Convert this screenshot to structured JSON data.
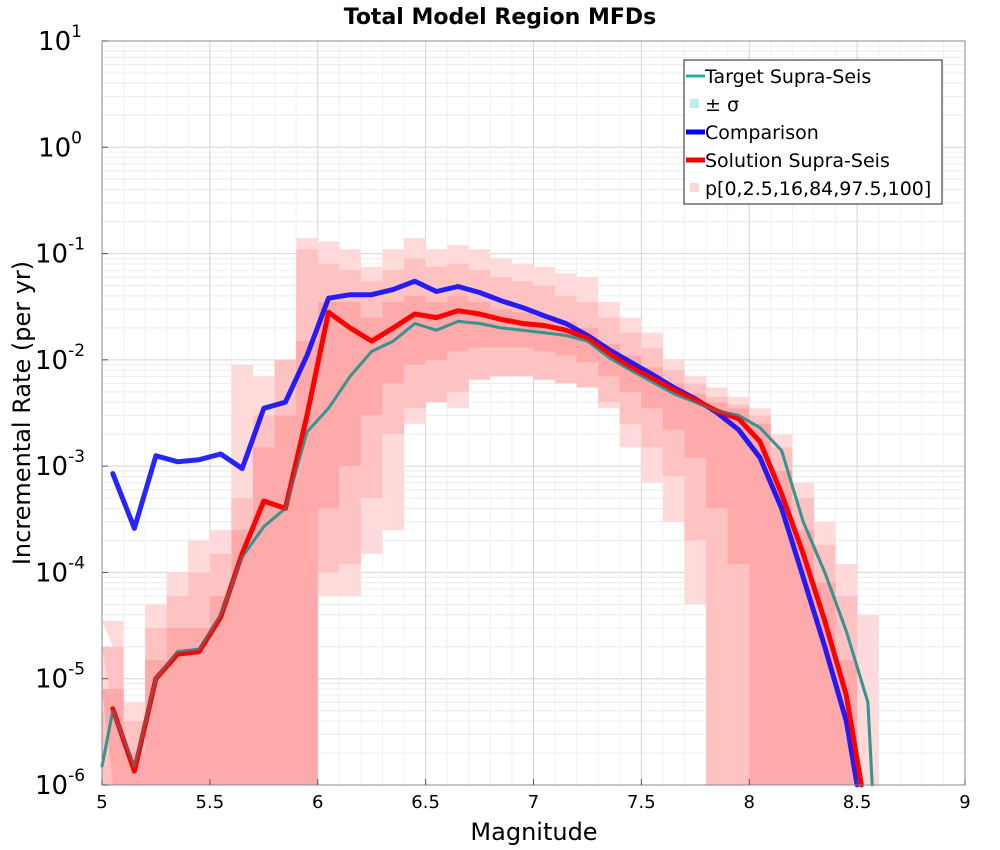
{
  "chart_data": {
    "type": "line",
    "title": "Total Model Region MFDs",
    "xlabel": "Magnitude",
    "ylabel": "Incremental Rate (per yr)",
    "xlim": [
      5,
      9
    ],
    "ylim": [
      1e-06,
      10
    ],
    "yscale": "log",
    "grid": true,
    "legend_position": "top-right",
    "x_ticks": [
      "5",
      "5.5",
      "6",
      "6.5",
      "7",
      "7.5",
      "8",
      "8.5",
      "9"
    ],
    "y_ticks": [
      {
        "value": 1e-06,
        "base": "10",
        "exp": "-6"
      },
      {
        "value": 1e-05,
        "base": "10",
        "exp": "-5"
      },
      {
        "value": 0.0001,
        "base": "10",
        "exp": "-4"
      },
      {
        "value": 0.001,
        "base": "10",
        "exp": "-3"
      },
      {
        "value": 0.01,
        "base": "10",
        "exp": "-2"
      },
      {
        "value": 0.1,
        "base": "10",
        "exp": "-1"
      },
      {
        "value": 1,
        "base": "10",
        "exp": "0"
      },
      {
        "value": 10,
        "base": "10",
        "exp": "1"
      }
    ],
    "legend": [
      {
        "label": "Target Supra-Seis",
        "kind": "line-thin",
        "color": "#20b2aa"
      },
      {
        "label": "± σ",
        "kind": "square",
        "color": "#c0ecec"
      },
      {
        "label": "Comparison",
        "kind": "line-thick",
        "color": "#0000ff"
      },
      {
        "label": "Solution Supra-Seis",
        "kind": "line-thick",
        "color": "#ff0000"
      },
      {
        "label": "p[0,2.5,16,84,97.5,100]",
        "kind": "square",
        "color": "#ffd6d6"
      }
    ],
    "series": [
      {
        "name": "Target Supra-Seis",
        "color": "#20b2aa",
        "x": [
          5.0,
          5.05,
          5.15,
          5.25,
          5.35,
          5.45,
          5.55,
          5.65,
          5.75,
          5.85,
          5.95,
          6.05,
          6.15,
          6.25,
          6.35,
          6.45,
          6.55,
          6.65,
          6.75,
          6.85,
          6.95,
          7.05,
          7.15,
          7.25,
          7.35,
          7.45,
          7.55,
          7.65,
          7.75,
          7.85,
          7.95,
          8.05,
          8.15,
          8.25,
          8.35,
          8.45,
          8.55,
          8.57
        ],
        "y": [
          1.5e-06,
          5e-06,
          1.5e-06,
          1e-05,
          1.8e-05,
          1.9e-05,
          4e-05,
          0.00014,
          0.00027,
          0.0004,
          0.0021,
          0.0035,
          0.007,
          0.012,
          0.015,
          0.022,
          0.019,
          0.023,
          0.022,
          0.02,
          0.019,
          0.018,
          0.017,
          0.015,
          0.0105,
          0.008,
          0.0062,
          0.0048,
          0.004,
          0.0033,
          0.003,
          0.0023,
          0.0014,
          0.0003,
          0.0001,
          2.8e-05,
          6e-06,
          1e-06
        ]
      },
      {
        "name": "Comparison",
        "color": "#0000ff",
        "x": [
          5.05,
          5.15,
          5.25,
          5.35,
          5.45,
          5.55,
          5.65,
          5.75,
          5.85,
          5.95,
          6.05,
          6.15,
          6.25,
          6.35,
          6.45,
          6.55,
          6.65,
          6.75,
          6.85,
          6.95,
          7.05,
          7.15,
          7.25,
          7.35,
          7.45,
          7.55,
          7.65,
          7.75,
          7.85,
          7.95,
          8.05,
          8.15,
          8.25,
          8.35,
          8.45,
          8.5
        ],
        "y": [
          0.00085,
          0.00026,
          0.00125,
          0.0011,
          0.00115,
          0.0013,
          0.00095,
          0.0035,
          0.004,
          0.011,
          0.038,
          0.041,
          0.041,
          0.046,
          0.055,
          0.044,
          0.049,
          0.043,
          0.036,
          0.031,
          0.026,
          0.022,
          0.017,
          0.0125,
          0.0095,
          0.0073,
          0.0055,
          0.0043,
          0.0032,
          0.0022,
          0.0012,
          0.0004,
          9e-05,
          2e-05,
          4e-06,
          1e-06
        ]
      },
      {
        "name": "Solution Supra-Seis",
        "color": "#ff0000",
        "x": [
          5.05,
          5.15,
          5.25,
          5.35,
          5.45,
          5.55,
          5.65,
          5.75,
          5.85,
          5.95,
          6.05,
          6.15,
          6.25,
          6.35,
          6.45,
          6.55,
          6.65,
          6.75,
          6.85,
          6.95,
          7.05,
          7.15,
          7.25,
          7.35,
          7.45,
          7.55,
          7.65,
          7.75,
          7.85,
          7.95,
          8.05,
          8.15,
          8.25,
          8.35,
          8.45,
          8.52
        ],
        "y": [
          5.2e-06,
          1.35e-06,
          1e-05,
          1.7e-05,
          1.8e-05,
          3.8e-05,
          0.00015,
          0.00047,
          0.0004,
          0.003,
          0.028,
          0.02,
          0.015,
          0.02,
          0.027,
          0.025,
          0.029,
          0.027,
          0.024,
          0.022,
          0.021,
          0.019,
          0.016,
          0.0115,
          0.0085,
          0.0067,
          0.0052,
          0.0042,
          0.0033,
          0.0028,
          0.0017,
          0.00055,
          0.00015,
          3.5e-05,
          7e-06,
          1e-06
        ]
      }
    ],
    "bands": [
      {
        "name": "p0-p100",
        "color": "#ffdada",
        "x": [
          5.0,
          5.05,
          5.15,
          5.25,
          5.35,
          5.45,
          5.55,
          5.65,
          5.75,
          5.85,
          5.95,
          6.05,
          6.15,
          6.25,
          6.35,
          6.45,
          6.55,
          6.65,
          6.75,
          6.85,
          6.95,
          7.05,
          7.15,
          7.25,
          7.35,
          7.45,
          7.55,
          7.65,
          7.75,
          7.85,
          7.95,
          8.05,
          8.15,
          8.25,
          8.35,
          8.45,
          8.55
        ],
        "upper": [
          2e-05,
          3.5e-05,
          6e-06,
          5e-05,
          0.0001,
          0.0002,
          0.00025,
          0.009,
          0.007,
          0.01,
          0.14,
          0.13,
          0.11,
          0.075,
          0.11,
          0.14,
          0.11,
          0.12,
          0.11,
          0.09,
          0.08,
          0.075,
          0.065,
          0.06,
          0.035,
          0.025,
          0.018,
          0.01,
          0.007,
          0.0055,
          0.0045,
          0.0035,
          0.002,
          0.0007,
          0.0003,
          0.00012,
          4e-05
        ],
        "lower": [
          1e-06,
          1e-06,
          1e-06,
          1e-06,
          1e-06,
          1e-06,
          1e-06,
          1e-06,
          1e-06,
          1e-06,
          1e-06,
          6e-05,
          6e-05,
          0.00015,
          0.00025,
          0.0025,
          0.008,
          0.0035,
          0.008,
          0.008,
          0.008,
          0.0075,
          0.007,
          0.0065,
          0.0035,
          0.0015,
          0.0007,
          0.0003,
          5e-05,
          1e-06,
          1e-06,
          1e-06,
          1e-06,
          1e-06,
          1e-06,
          1e-06,
          1e-06
        ]
      },
      {
        "name": "p2.5-p97.5",
        "color": "#ffc2c2",
        "x": [
          5.0,
          5.05,
          5.15,
          5.25,
          5.35,
          5.45,
          5.55,
          5.65,
          5.75,
          5.85,
          5.95,
          6.05,
          6.15,
          6.25,
          6.35,
          6.45,
          6.55,
          6.65,
          6.75,
          6.85,
          6.95,
          7.05,
          7.15,
          7.25,
          7.35,
          7.45,
          7.55,
          7.65,
          7.75,
          7.85,
          7.95,
          8.05,
          8.15,
          8.25,
          8.35,
          8.45,
          8.55
        ],
        "upper": [
          5e-06,
          2e-05,
          4e-06,
          3e-05,
          6e-05,
          0.0001,
          0.00015,
          0.0005,
          0.003,
          0.01,
          0.11,
          0.08,
          0.07,
          0.055,
          0.07,
          0.09,
          0.075,
          0.08,
          0.07,
          0.06,
          0.055,
          0.05,
          0.04,
          0.035,
          0.025,
          0.018,
          0.013,
          0.008,
          0.006,
          0.0045,
          0.0038,
          0.003,
          0.0015,
          0.0005,
          0.00018,
          6e-05,
          1e-06
        ],
        "lower": [
          1e-06,
          1e-06,
          1e-06,
          1e-06,
          1e-06,
          1e-06,
          1e-06,
          1e-06,
          1e-06,
          1e-06,
          1e-06,
          0.0001,
          0.00012,
          0.0005,
          0.002,
          0.0035,
          0.004,
          0.005,
          0.0065,
          0.007,
          0.007,
          0.0065,
          0.006,
          0.0055,
          0.004,
          0.0025,
          0.0015,
          0.0008,
          0.0002,
          1e-06,
          1e-06,
          1e-06,
          1e-06,
          1e-06,
          1e-06,
          1e-06,
          1e-06
        ]
      },
      {
        "name": "p16-p84",
        "color": "#ffaaaa",
        "x": [
          5.0,
          5.05,
          5.15,
          5.25,
          5.35,
          5.45,
          5.55,
          5.65,
          5.75,
          5.85,
          5.95,
          6.05,
          6.15,
          6.25,
          6.35,
          6.45,
          6.55,
          6.65,
          6.75,
          6.85,
          6.95,
          7.05,
          7.15,
          7.25,
          7.35,
          7.45,
          7.55,
          7.65,
          7.75,
          7.85,
          7.95,
          8.05,
          8.15,
          8.25,
          8.35,
          8.45,
          8.55
        ],
        "upper": [
          1e-06,
          8e-06,
          2e-06,
          1.5e-05,
          3e-05,
          3e-05,
          6e-05,
          0.00025,
          0.0015,
          0.003,
          0.015,
          0.035,
          0.035,
          0.025,
          0.035,
          0.04,
          0.035,
          0.04,
          0.035,
          0.03,
          0.028,
          0.026,
          0.023,
          0.02,
          0.014,
          0.011,
          0.0085,
          0.006,
          0.0048,
          0.004,
          0.0035,
          0.0025,
          0.0009,
          0.00025,
          8e-05,
          1.5e-05,
          1e-06
        ],
        "lower": [
          1e-06,
          1e-06,
          1e-06,
          1e-06,
          1e-06,
          1e-06,
          1e-06,
          1e-06,
          1e-06,
          1e-06,
          1e-06,
          0.0004,
          0.001,
          0.003,
          0.006,
          0.009,
          0.01,
          0.012,
          0.013,
          0.013,
          0.013,
          0.012,
          0.011,
          0.0095,
          0.007,
          0.005,
          0.0035,
          0.0022,
          0.0012,
          0.0004,
          0.00012,
          1e-06,
          1e-06,
          1e-06,
          1e-06,
          1e-06,
          1e-06
        ]
      }
    ]
  }
}
